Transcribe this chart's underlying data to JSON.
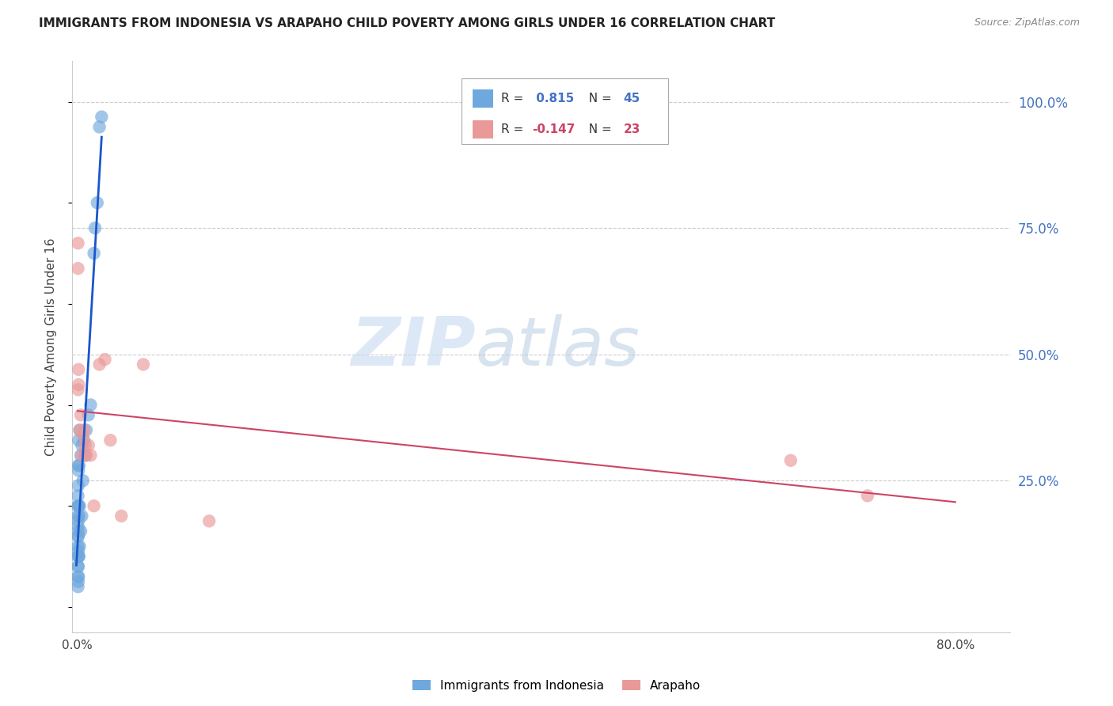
{
  "title": "IMMIGRANTS FROM INDONESIA VS ARAPAHO CHILD POVERTY AMONG GIRLS UNDER 16 CORRELATION CHART",
  "source": "Source: ZipAtlas.com",
  "ylabel": "Child Poverty Among Girls Under 16",
  "right_yticks": [
    0.0,
    0.25,
    0.5,
    0.75,
    1.0
  ],
  "right_yticklabels": [
    "",
    "25.0%",
    "50.0%",
    "75.0%",
    "100.0%"
  ],
  "blue_color": "#6fa8dc",
  "pink_color": "#ea9999",
  "blue_line_color": "#1a56cc",
  "pink_line_color": "#cc4466",
  "blue_r": " 0.815",
  "blue_n": "45",
  "pink_r": "-0.147",
  "pink_n": "23",
  "blue_label": "Immigrants from Indonesia",
  "pink_label": "Arapaho",
  "watermark_zip": "ZIP",
  "watermark_atlas": "atlas",
  "xlim": [
    -0.005,
    0.85
  ],
  "ylim": [
    -0.05,
    1.08
  ],
  "blue_scatter_x": [
    0.0005,
    0.0005,
    0.0005,
    0.0005,
    0.0005,
    0.0005,
    0.0005,
    0.0005,
    0.0005,
    0.0005,
    0.0008,
    0.0008,
    0.0008,
    0.0008,
    0.0008,
    0.0008,
    0.0008,
    0.0008,
    0.001,
    0.001,
    0.001,
    0.001,
    0.001,
    0.001,
    0.0015,
    0.0015,
    0.0015,
    0.002,
    0.002,
    0.002,
    0.003,
    0.003,
    0.004,
    0.004,
    0.005,
    0.006,
    0.007,
    0.008,
    0.01,
    0.012,
    0.015,
    0.016,
    0.018,
    0.02,
    0.022
  ],
  "blue_scatter_y": [
    0.04,
    0.06,
    0.08,
    0.1,
    0.12,
    0.14,
    0.16,
    0.18,
    0.2,
    0.22,
    0.05,
    0.08,
    0.11,
    0.14,
    0.17,
    0.2,
    0.24,
    0.28,
    0.06,
    0.1,
    0.15,
    0.2,
    0.27,
    0.33,
    0.1,
    0.18,
    0.28,
    0.12,
    0.2,
    0.35,
    0.15,
    0.3,
    0.18,
    0.32,
    0.25,
    0.33,
    0.3,
    0.35,
    0.38,
    0.4,
    0.7,
    0.75,
    0.8,
    0.95,
    0.97
  ],
  "pink_scatter_x": [
    0.0005,
    0.0005,
    0.0005,
    0.001,
    0.001,
    0.002,
    0.003,
    0.004,
    0.005,
    0.006,
    0.007,
    0.008,
    0.01,
    0.012,
    0.015,
    0.02,
    0.025,
    0.03,
    0.04,
    0.06,
    0.12,
    0.65,
    0.72
  ],
  "pink_scatter_y": [
    0.43,
    0.67,
    0.72,
    0.44,
    0.47,
    0.35,
    0.38,
    0.3,
    0.34,
    0.35,
    0.32,
    0.3,
    0.32,
    0.3,
    0.2,
    0.48,
    0.49,
    0.33,
    0.18,
    0.48,
    0.17,
    0.29,
    0.22
  ],
  "xtick_positions": [
    0.0,
    0.2,
    0.4,
    0.6,
    0.8
  ],
  "xtick_labels": [
    "0.0%",
    "",
    "",
    "",
    "80.0%"
  ]
}
